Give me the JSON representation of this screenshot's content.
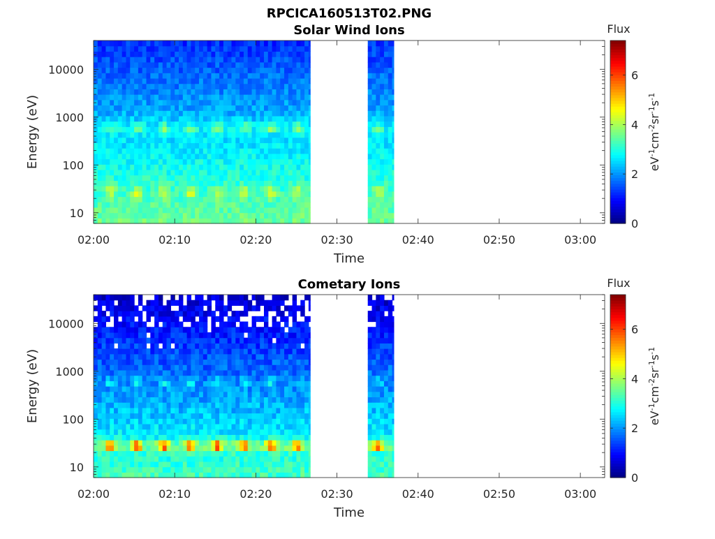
{
  "figure": {
    "title": "RPCICA160513T02.PNG"
  },
  "chart_data": [
    {
      "type": "heatmap",
      "title": "Solar Wind Ions",
      "xlabel": "Time",
      "ylabel": "Energy (eV)",
      "yscale": "log",
      "xlim": [
        "02:00",
        "03:03"
      ],
      "ylim": [
        6,
        40000
      ],
      "x_ticks": [
        "02:00",
        "02:10",
        "02:20",
        "02:30",
        "02:40",
        "02:50",
        "03:00"
      ],
      "y_ticks": [
        "10",
        "100",
        "1000",
        "10000"
      ],
      "data_intervals": [
        [
          "02:00",
          "02:26.7"
        ],
        [
          "02:33.8",
          "02:37"
        ]
      ],
      "colorbar": {
        "label": "Flux",
        "units_html": "eV<tspan baseline-shift='super' font-size='11'>-1</tspan>cm<tspan baseline-shift='super' font-size='11'>-2</tspan>sr<tspan baseline-shift='super' font-size='11'>-1</tspan>s<tspan baseline-shift='super' font-size='11'>-1</tspan>",
        "range": [
          0,
          7.4
        ],
        "ticks": [
          "0",
          "2",
          "4",
          "6"
        ],
        "colormap": "jet"
      },
      "features": [
        {
          "energy_eV": 28,
          "flux": 4.6,
          "note": "low-energy band, pulsing every ~3.3 min"
        },
        {
          "energy_eV": 600,
          "flux": 3.8,
          "note": "solar wind band, pulsing"
        },
        {
          "energy_eV": 10000,
          "flux": 1.4,
          "note": "high-energy background"
        }
      ]
    },
    {
      "type": "heatmap",
      "title": "Cometary Ions",
      "xlabel": "Time",
      "ylabel": "Energy (eV)",
      "yscale": "log",
      "xlim": [
        "02:00",
        "03:03"
      ],
      "ylim": [
        6,
        40000
      ],
      "x_ticks": [
        "02:00",
        "02:10",
        "02:20",
        "02:30",
        "02:40",
        "02:50",
        "03:00"
      ],
      "y_ticks": [
        "10",
        "100",
        "1000",
        "10000"
      ],
      "data_intervals": [
        [
          "02:00",
          "02:26.7"
        ],
        [
          "02:33.8",
          "02:37"
        ]
      ],
      "colorbar": {
        "label": "Flux",
        "units_html": "eV<tspan baseline-shift='super' font-size='11'>-1</tspan>cm<tspan baseline-shift='super' font-size='11'>-2</tspan>sr<tspan baseline-shift='super' font-size='11'>-1</tspan>s<tspan baseline-shift='super' font-size='11'>-1</tspan>",
        "range": [
          0,
          7.4
        ],
        "ticks": [
          "0",
          "2",
          "4",
          "6"
        ],
        "colormap": "jet"
      },
      "features": [
        {
          "energy_eV": 28,
          "flux": 6.0,
          "note": "strong low-energy band, pulsing every ~3.3 min"
        },
        {
          "energy_eV": 600,
          "flux": 3.0,
          "note": "weaker band, pulsing"
        },
        {
          "energy_eV": 20000,
          "flux": 0.8,
          "note": "sparse high-energy counts with empty bins"
        }
      ]
    }
  ]
}
